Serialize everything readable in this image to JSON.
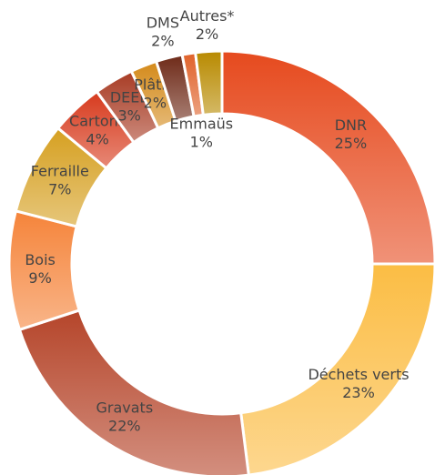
{
  "chart_data": {
    "type": "donut",
    "categories": [
      "DNR",
      "Déchets verts",
      "Gravats",
      "Bois",
      "Ferraille",
      "Cartons",
      "DEEE",
      "Plâtre",
      "DMS",
      "Emmaüs",
      "Autres*"
    ],
    "values": [
      25,
      23,
      22,
      9,
      7,
      4,
      3,
      2,
      2,
      1,
      2
    ],
    "value_labels": [
      "25%",
      "23%",
      "22%",
      "9%",
      "7%",
      "4%",
      "3%",
      "2%",
      "2%",
      "1%",
      "2%"
    ],
    "colors": [
      "#e64a1e",
      "#fbbd44",
      "#b5452a",
      "#f5843a",
      "#d6a021",
      "#d73a1d",
      "#a83c24",
      "#d48a1a",
      "#6e2a18",
      "#e0622a",
      "#b88a00"
    ]
  }
}
